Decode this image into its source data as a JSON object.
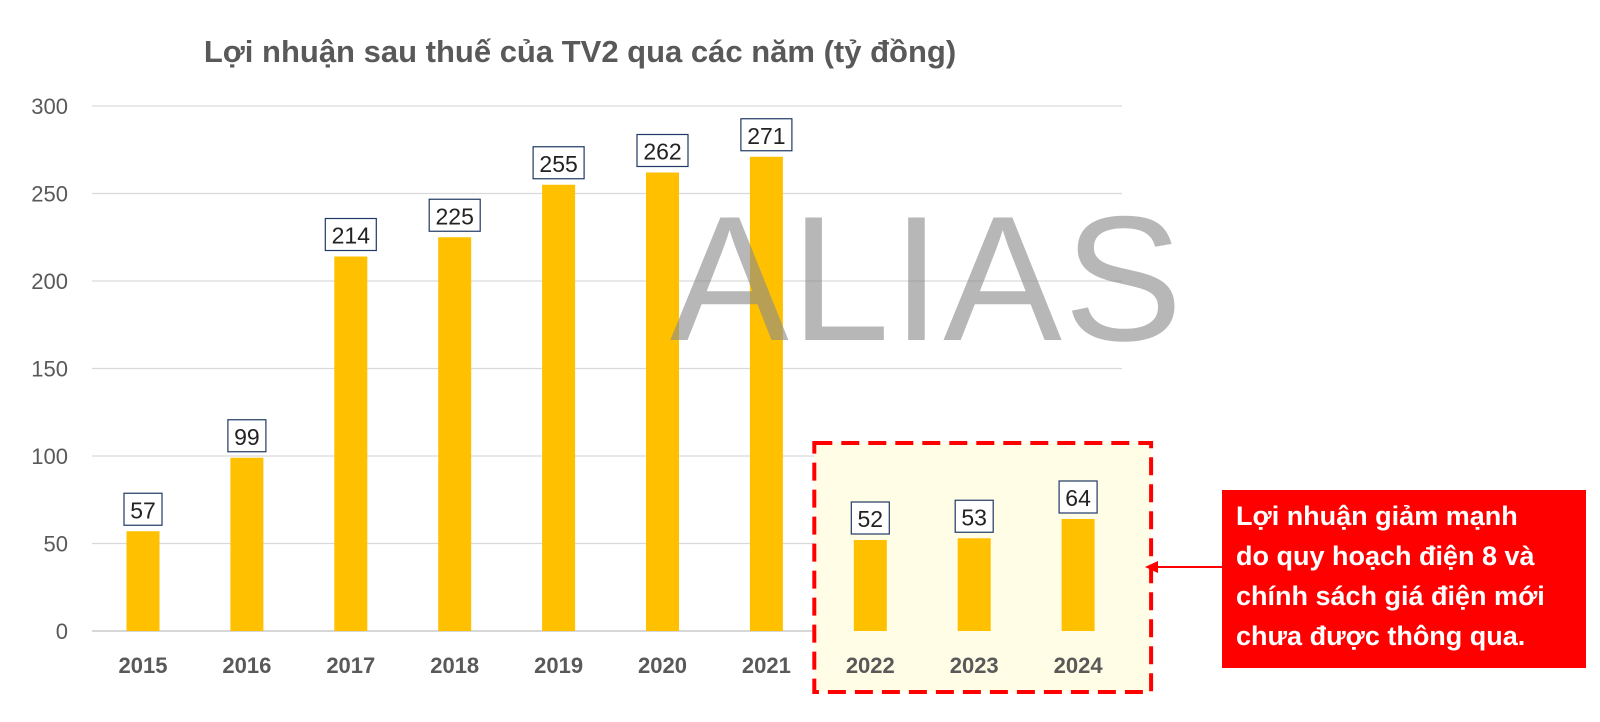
{
  "chart_data": {
    "type": "bar",
    "title": "Lợi nhuận sau thuế của TV2 qua các năm (tỷ đồng)",
    "categories": [
      "2015",
      "2016",
      "2017",
      "2018",
      "2019",
      "2020",
      "2021",
      "2022",
      "2023",
      "2024"
    ],
    "values": [
      57,
      99,
      214,
      225,
      255,
      262,
      271,
      52,
      53,
      64
    ],
    "data_labels": [
      "57",
      "99",
      "214",
      "225",
      "255",
      "262",
      "271",
      "52",
      "53",
      "64"
    ],
    "ylim": [
      0,
      300
    ],
    "yticks": [
      0,
      50,
      100,
      150,
      200,
      250,
      300
    ],
    "ytick_labels": [
      "0",
      "50",
      "100",
      "150",
      "200",
      "250",
      "300"
    ],
    "grid": true,
    "legend": "none",
    "highlighted_categories": [
      "2022",
      "2023",
      "2024"
    ]
  },
  "annotation": {
    "lines": [
      "Lợi nhuận giảm mạnh",
      "do quy hoạch điện 8 và",
      "chính sách giá điện mới",
      "chưa được thông qua."
    ]
  },
  "watermark": "ALIAS",
  "colors": {
    "bar": "#ffc000",
    "grid": "#d9d9d9",
    "highlight_fill": "#fffde6",
    "highlight_border": "#ff0000",
    "note_background": "#ff0000",
    "label_border": "#1f3864"
  }
}
